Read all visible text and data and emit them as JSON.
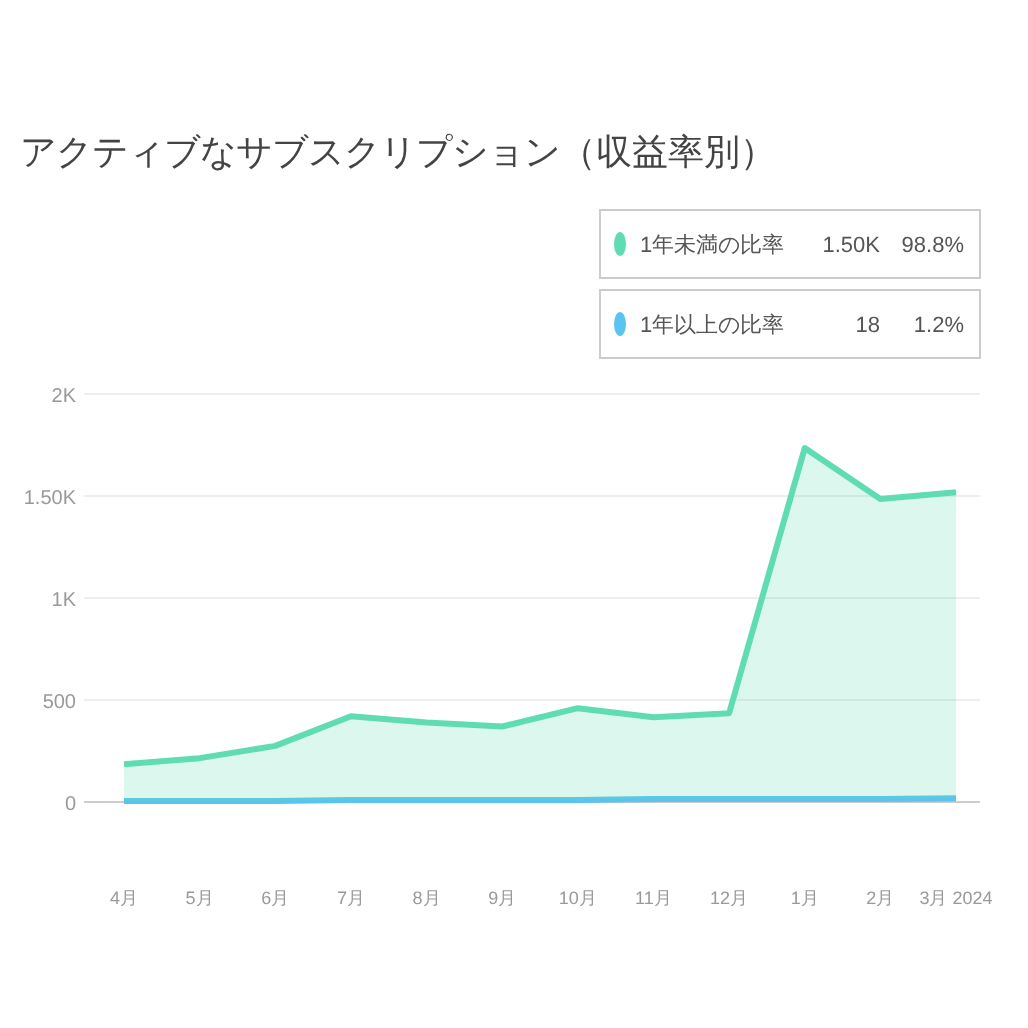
{
  "chart_data": {
    "type": "area",
    "title": "アクティブなサブスクリプション（収益率別）",
    "stacked": true,
    "categories": [
      "4月",
      "5月",
      "6月",
      "7月",
      "8月",
      "9月",
      "10月",
      "11月",
      "12月",
      "1月",
      "2月",
      "3月 2024"
    ],
    "series": [
      {
        "name": "1年以上の比率",
        "color": "#5bc3f0",
        "values": [
          5,
          5,
          5,
          10,
          10,
          10,
          10,
          15,
          15,
          15,
          15,
          18
        ]
      },
      {
        "name": "1年未満の比率",
        "color": "#5fdcb3",
        "values": [
          180,
          210,
          270,
          410,
          380,
          360,
          450,
          400,
          420,
          1720,
          1470,
          1500
        ]
      }
    ],
    "ylim": [
      0,
      2000
    ],
    "yticks": [
      0,
      500,
      {
        "value": 1000,
        "label": "1K"
      },
      {
        "value": 1500,
        "label": "1.50K"
      },
      {
        "value": 2000,
        "label": "2K"
      }
    ],
    "grid": "y",
    "legend": "top right",
    "annotations": [
      "18",
      "1.2%",
      "1.50K",
      "98.8%"
    ]
  }
}
